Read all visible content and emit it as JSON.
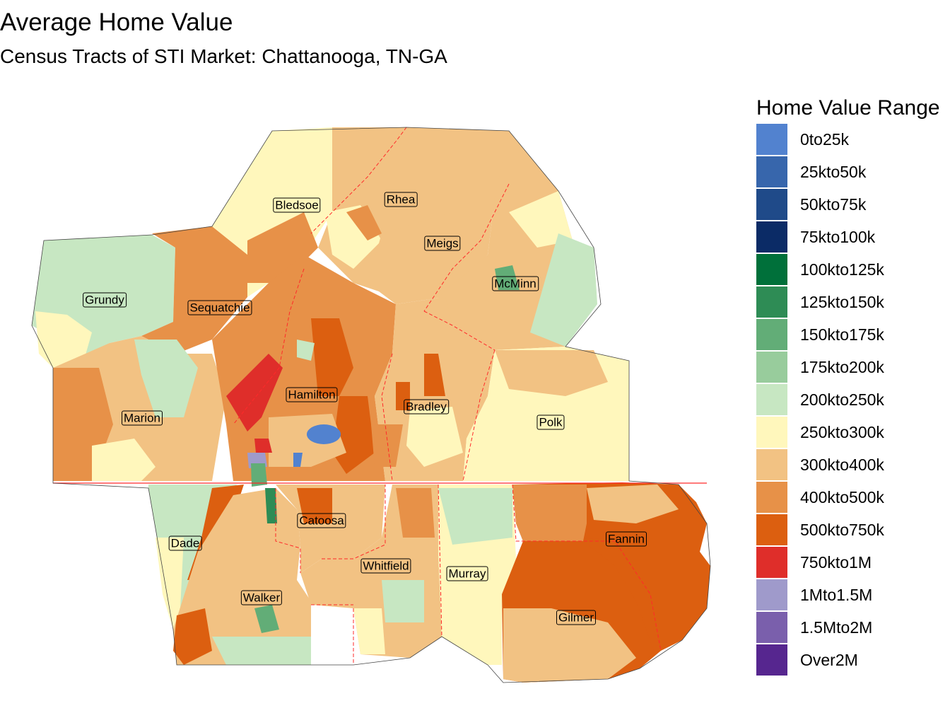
{
  "title": "Average Home Value",
  "subtitle": "Census Tracts of STI Market: Chattanooga, TN-GA",
  "legend": {
    "title": "Home Value Range",
    "items": [
      {
        "label": "0to25k",
        "color": "#5282cf"
      },
      {
        "label": "25kto50k",
        "color": "#3766ac"
      },
      {
        "label": "50kto75k",
        "color": "#1f4a89"
      },
      {
        "label": "75kto100k",
        "color": "#0b2b66"
      },
      {
        "label": "100kto125k",
        "color": "#00703a"
      },
      {
        "label": "125kto150k",
        "color": "#2e8c55"
      },
      {
        "label": "150kto175k",
        "color": "#62ad77"
      },
      {
        "label": "175kto200k",
        "color": "#98cc9c"
      },
      {
        "label": "200kto250k",
        "color": "#c7e7c2"
      },
      {
        "label": "250kto300k",
        "color": "#fff7bc"
      },
      {
        "label": "300kto400k",
        "color": "#f2c283"
      },
      {
        "label": "400kto500k",
        "color": "#e79148"
      },
      {
        "label": "500kto750k",
        "color": "#dc5f10"
      },
      {
        "label": "750kto1M",
        "color": "#df2e2a"
      },
      {
        "label": "1Mto1.5M",
        "color": "#9f9acb"
      },
      {
        "label": "1.5Mto2M",
        "color": "#7a5fac"
      },
      {
        "label": "Over2M",
        "color": "#56268f"
      }
    ]
  },
  "counties": [
    {
      "name": "Bledsoe"
    },
    {
      "name": "Rhea"
    },
    {
      "name": "Meigs"
    },
    {
      "name": "McMinn"
    },
    {
      "name": "Grundy"
    },
    {
      "name": "Sequatchie"
    },
    {
      "name": "Hamilton"
    },
    {
      "name": "Bradley"
    },
    {
      "name": "Marion"
    },
    {
      "name": "Polk"
    },
    {
      "name": "Catoosa"
    },
    {
      "name": "Dade"
    },
    {
      "name": "Fannin"
    },
    {
      "name": "Whitfield"
    },
    {
      "name": "Murray"
    },
    {
      "name": "Walker"
    },
    {
      "name": "Gilmer"
    }
  ]
}
